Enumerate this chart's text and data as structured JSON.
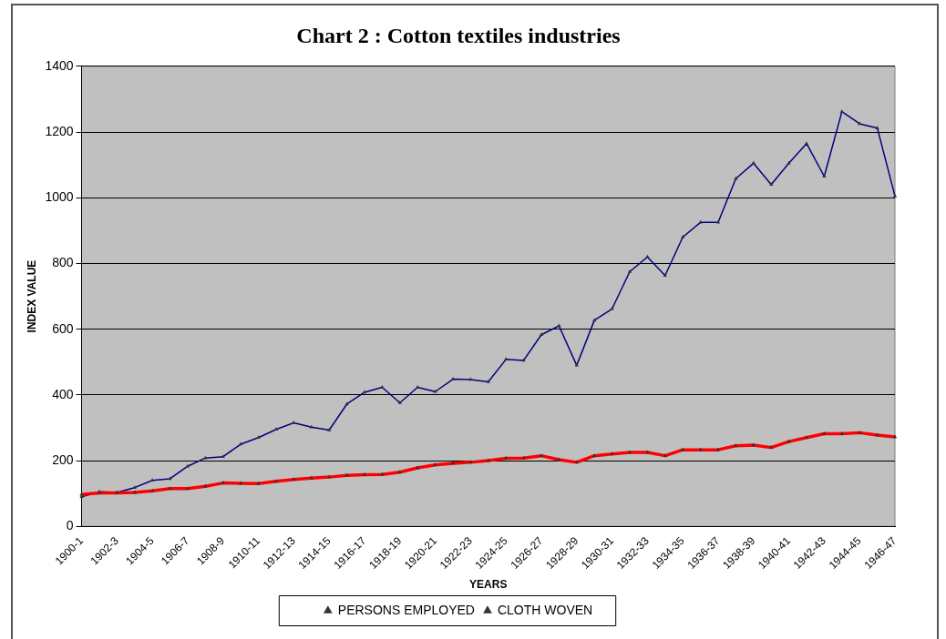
{
  "chart_data": {
    "type": "line",
    "title": "Chart 2 : Cotton textiles industries",
    "xlabel": "YEARS",
    "ylabel": "INDEX VALUE",
    "categories": [
      "1900-1",
      null,
      "1902-3",
      null,
      "1904-5",
      null,
      "1906-7",
      null,
      "1908-9",
      null,
      "1910-11",
      null,
      "1912-13",
      null,
      "1914-15",
      null,
      "1916-17",
      null,
      "1918-19",
      null,
      "1920-21",
      null,
      "1922-23",
      null,
      "1924-25",
      null,
      "1926-27",
      null,
      "1928-29",
      null,
      "1930-31",
      null,
      "1932-33",
      null,
      "1934-35",
      null,
      "1936-37",
      null,
      "1938-39",
      null,
      "1940-41",
      null,
      "1942-43",
      null,
      "1944-45",
      null,
      "1946-47"
    ],
    "series": [
      {
        "name": "CLOTH WOVEN",
        "color": "#000080",
        "values": [
          90,
          105,
          103,
          118,
          140,
          145,
          183,
          208,
          212,
          250,
          270,
          295,
          315,
          302,
          293,
          372,
          408,
          423,
          376,
          423,
          410,
          448,
          447,
          440,
          508,
          505,
          583,
          610,
          490,
          627,
          662,
          775,
          820,
          763,
          880,
          925,
          925,
          1058,
          1105,
          1040,
          1105,
          1165,
          1065,
          1262,
          1225,
          1212,
          1005
        ]
      },
      {
        "name": "PERSONS EMPLOYED",
        "color": "#ff0000",
        "values": [
          97,
          102,
          102,
          103,
          108,
          115,
          115,
          122,
          132,
          131,
          130,
          137,
          143,
          147,
          150,
          155,
          157,
          158,
          165,
          178,
          187,
          192,
          195,
          200,
          207,
          208,
          215,
          203,
          195,
          215,
          220,
          225,
          225,
          215,
          233,
          233,
          233,
          245,
          247,
          240,
          258,
          270,
          282,
          282,
          285,
          278,
          272
        ]
      }
    ],
    "ylim": [
      0,
      1400
    ],
    "yticks": [
      0,
      200,
      400,
      600,
      800,
      1000,
      1200,
      1400
    ],
    "grid": "y",
    "legend": "bottom",
    "marker": "triangle",
    "line_style": "solid"
  }
}
